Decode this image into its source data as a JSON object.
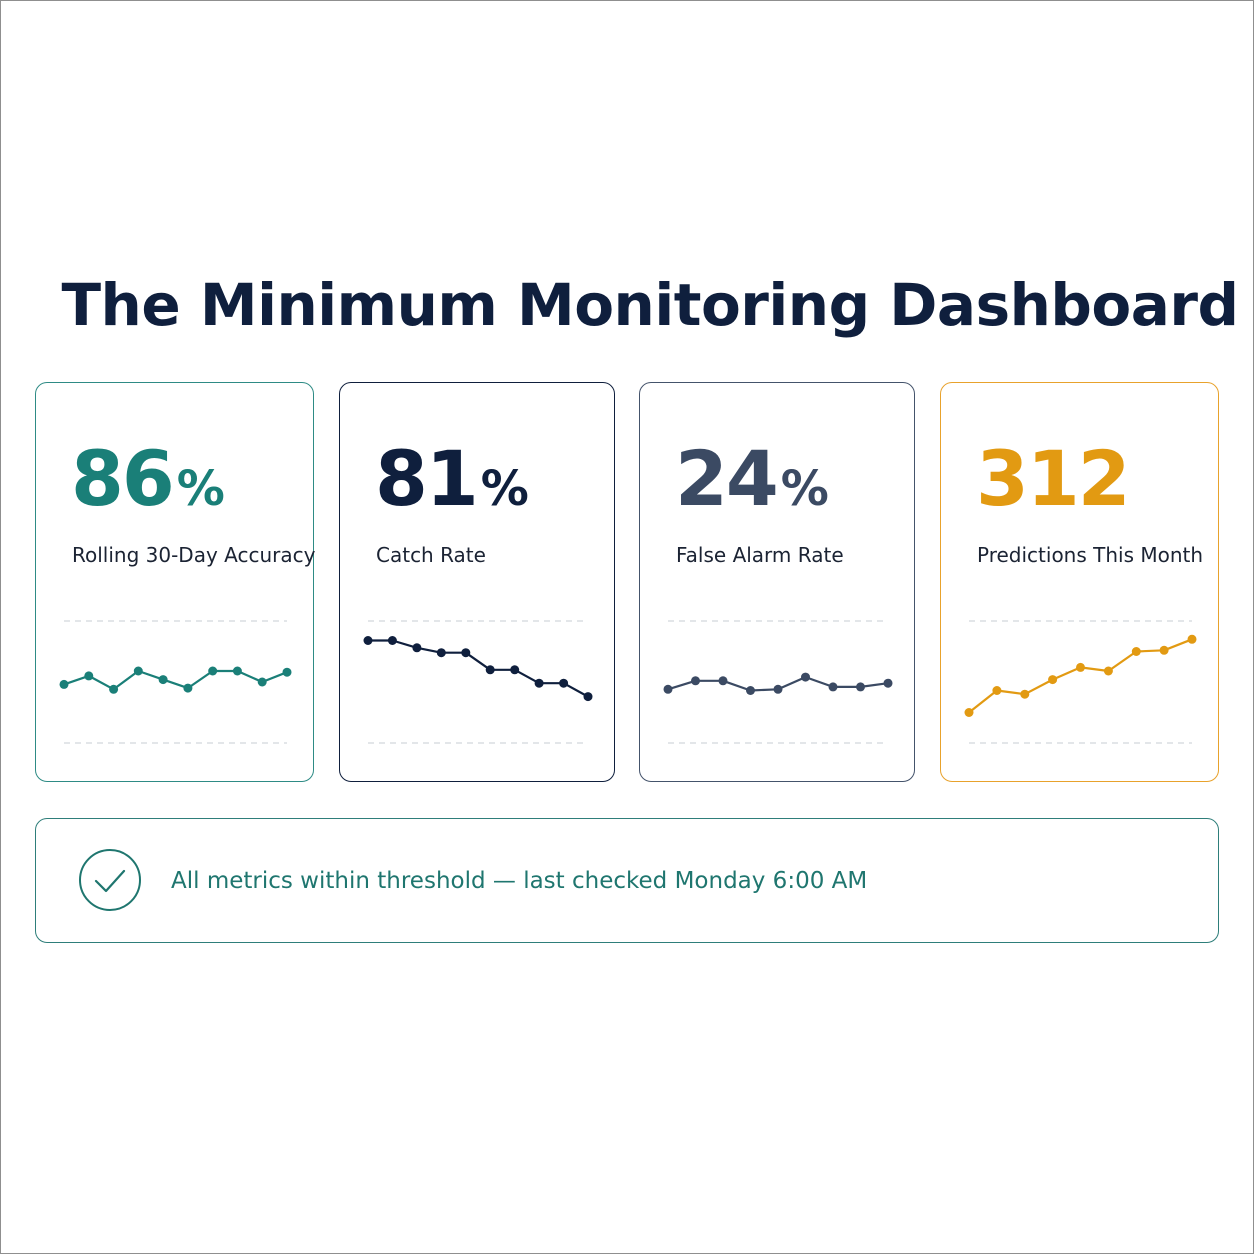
{
  "title": "The Minimum Monitoring Dashboard",
  "cards": [
    {
      "id": "accuracy",
      "value": "86",
      "unit": "%",
      "label": "Rolling 30-Day Accuracy",
      "color": "#1a7f78",
      "border": "#2e8b85",
      "trend": [
        0.48,
        0.55,
        0.44,
        0.59,
        0.52,
        0.45,
        0.59,
        0.59,
        0.5,
        0.58
      ]
    },
    {
      "id": "catch-rate",
      "value": "81",
      "unit": "%",
      "label": "Catch Rate",
      "color": "#0f1f3d",
      "border": "#0f1f3d",
      "trend": [
        0.84,
        0.84,
        0.78,
        0.74,
        0.74,
        0.6,
        0.6,
        0.49,
        0.49,
        0.38
      ]
    },
    {
      "id": "false-alarm-rate",
      "value": "24",
      "unit": "%",
      "label": "False Alarm Rate",
      "color": "#3b4a63",
      "border": "#44536b",
      "trend": [
        0.44,
        0.51,
        0.51,
        0.43,
        0.44,
        0.54,
        0.46,
        0.46,
        0.49
      ]
    },
    {
      "id": "predictions-this-month",
      "value": "312",
      "unit": "",
      "label": "Predictions This Month",
      "color": "#e29a12",
      "border": "#e8a22c",
      "trend": [
        0.25,
        0.43,
        0.4,
        0.52,
        0.62,
        0.59,
        0.75,
        0.76,
        0.85
      ]
    }
  ],
  "status": {
    "text": "All metrics within threshold — last checked Monday 6:00 AM",
    "icon": "check-circle-icon",
    "color": "#1f766f"
  }
}
